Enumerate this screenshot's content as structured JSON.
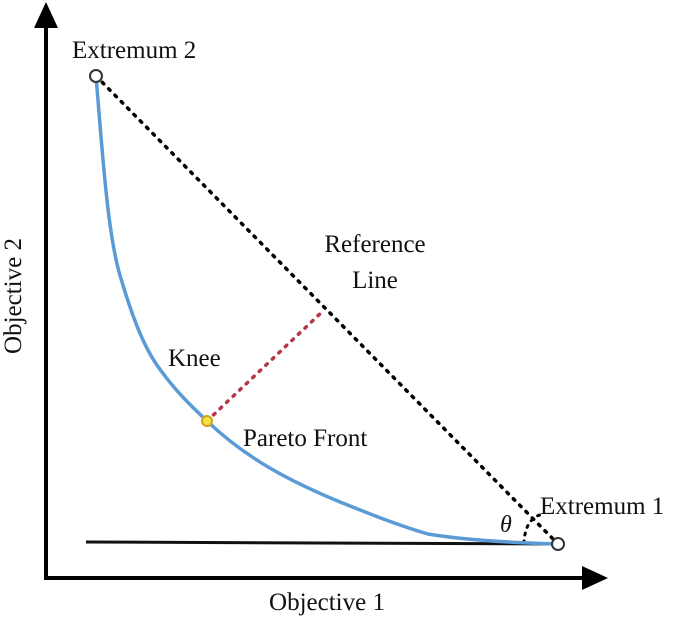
{
  "labels": {
    "x_axis": "Objective 1",
    "y_axis": "Objective 2",
    "extremum_1": "Extremum 1",
    "extremum_2": "Extremum 2",
    "reference_line_1": "Reference",
    "reference_line_2": "Line",
    "knee": "Knee",
    "pareto_front": "Pareto Front",
    "angle": "θ"
  },
  "colors": {
    "axis": "#000000",
    "pareto_front": "#5b9bd5",
    "reference_line": "#000000",
    "knee_distance": "#b5364a",
    "knee_point_fill": "#f2e24a",
    "knee_point_stroke": "#d4a017",
    "extremum_fill": "#ffffff",
    "extremum_stroke": "#333333"
  }
}
